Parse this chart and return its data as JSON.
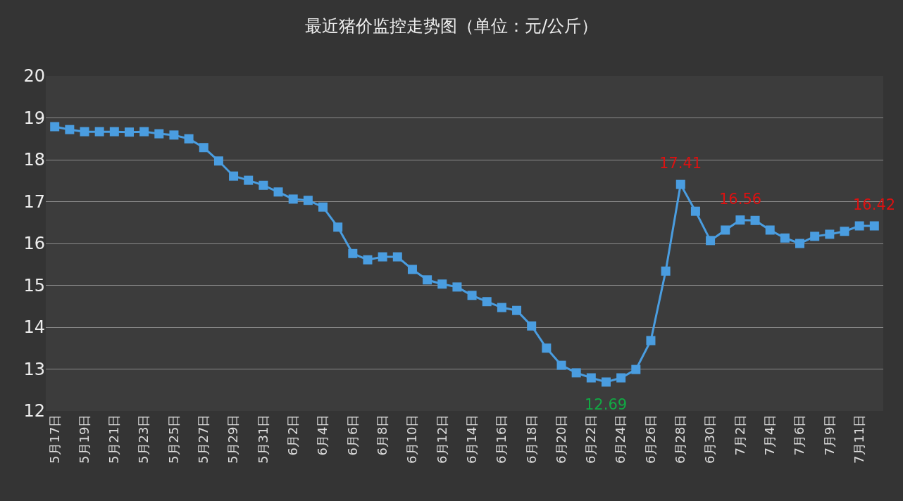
{
  "chart_data": {
    "type": "line",
    "title": "最近猪价监控走势图（单位：元/公斤）",
    "categories": [
      "5月17日",
      null,
      "5月19日",
      null,
      "5月21日",
      null,
      "5月23日",
      null,
      "5月25日",
      null,
      "5月27日",
      null,
      "5月29日",
      null,
      "5月31日",
      null,
      "6月2日",
      null,
      "6月4日",
      null,
      "6月6日",
      null,
      "6月8日",
      null,
      "6月10日",
      null,
      "6月12日",
      null,
      "6月14日",
      null,
      "6月16日",
      null,
      "6月18日",
      null,
      "6月20日",
      null,
      "6月22日",
      null,
      "6月24日",
      null,
      "6月26日",
      null,
      "6月28日",
      null,
      "6月30日",
      null,
      "7月2日",
      null,
      "7月4日",
      null,
      "7月6日",
      null,
      "7月9日",
      null,
      "7月11日",
      null
    ],
    "series": [
      {
        "color": "#4a9de0",
        "values": [
          18.79,
          18.72,
          18.67,
          18.67,
          18.67,
          18.66,
          18.67,
          18.62,
          18.59,
          18.5,
          18.29,
          17.97,
          17.61,
          17.51,
          17.39,
          17.23,
          17.06,
          17.03,
          16.87,
          16.39,
          15.76,
          15.61,
          15.68,
          15.68,
          15.38,
          15.13,
          15.03,
          14.96,
          14.76,
          14.61,
          14.47,
          14.4,
          14.03,
          13.5,
          13.09,
          12.91,
          12.79,
          12.69,
          12.79,
          12.99,
          13.68,
          15.34,
          17.41,
          16.77,
          16.07,
          16.32,
          16.56,
          16.55,
          16.32,
          16.13,
          16.0,
          16.17,
          16.22,
          16.29,
          16.42,
          16.42
        ],
        "value_labels": [
          null,
          null,
          null,
          null,
          null,
          null,
          null,
          null,
          null,
          null,
          null,
          null,
          null,
          null,
          null,
          null,
          null,
          null,
          null,
          null,
          null,
          null,
          null,
          null,
          null,
          null,
          null,
          null,
          null,
          null,
          null,
          null,
          null,
          null,
          null,
          null,
          null,
          "12.69",
          null,
          null,
          null,
          null,
          "17.41",
          null,
          null,
          null,
          "16.56",
          null,
          null,
          null,
          null,
          null,
          null,
          null,
          null,
          "16.42"
        ]
      }
    ],
    "ylim": [
      12,
      20
    ],
    "yticks": [
      12,
      13,
      14,
      15,
      16,
      17,
      18,
      19,
      20
    ],
    "grid": "y",
    "marker": "square",
    "line_style": "solid",
    "legend": false
  }
}
